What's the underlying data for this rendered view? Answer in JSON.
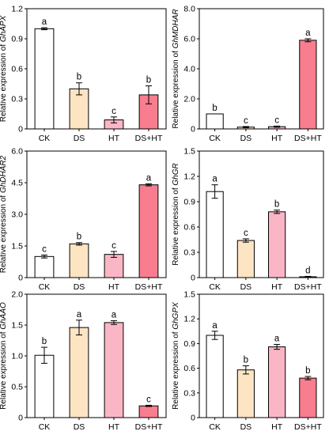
{
  "categories": [
    "CK",
    "DS",
    "HT",
    "DS+HT"
  ],
  "colors": {
    "CK": "#ffffff",
    "DS": "#fde4c2",
    "HT": "#fbb6c6",
    "DS+HT": "#f87d8f",
    "axis": "#000000"
  },
  "chart_data": [
    {
      "type": "bar",
      "ylabel_prefix": "Relative expression of ",
      "gene": "GhAPX",
      "categories": [
        "CK",
        "DS",
        "HT",
        "DS+HT"
      ],
      "values": [
        1.0,
        0.4,
        0.09,
        0.34
      ],
      "errors": [
        0.01,
        0.06,
        0.03,
        0.09
      ],
      "letters": [
        "a",
        "b",
        "c",
        "b"
      ],
      "ylim": [
        0,
        1.2
      ],
      "yticks": [
        "0",
        "0.3",
        "0.6",
        "0.9",
        "1.2"
      ]
    },
    {
      "type": "bar",
      "ylabel_prefix": "Relative expression of ",
      "gene": "GhMDHAR",
      "categories": [
        "CK",
        "DS",
        "HT",
        "DS+HT"
      ],
      "values": [
        1.0,
        0.12,
        0.15,
        5.9
      ],
      "errors": [
        0.0,
        0.04,
        0.04,
        0.1
      ],
      "letters": [
        "b",
        "c",
        "c",
        "a"
      ],
      "ylim": [
        0,
        8
      ],
      "yticks": [
        "0",
        "2.0",
        "4.0",
        "6.0",
        "8.0"
      ]
    },
    {
      "type": "bar",
      "ylabel_prefix": "Relative expression of ",
      "gene": "GhDHAR2",
      "categories": [
        "CK",
        "DS",
        "HT",
        "DS+HT"
      ],
      "values": [
        1.0,
        1.6,
        1.1,
        4.4
      ],
      "errors": [
        0.07,
        0.06,
        0.14,
        0.05
      ],
      "letters": [
        "c",
        "b",
        "c",
        "a"
      ],
      "ylim": [
        0,
        6
      ],
      "yticks": [
        "0",
        "1.5",
        "3.0",
        "4.5",
        "6.0"
      ]
    },
    {
      "type": "bar",
      "ylabel_prefix": "Relative expression of ",
      "gene": "GhGR",
      "categories": [
        "CK",
        "DS",
        "HT",
        "DS+HT"
      ],
      "values": [
        1.02,
        0.44,
        0.78,
        0.01
      ],
      "errors": [
        0.08,
        0.02,
        0.02,
        0.005
      ],
      "letters": [
        "a",
        "c",
        "b",
        "d"
      ],
      "ylim": [
        0,
        1.5
      ],
      "yticks": [
        "0",
        "0.3",
        "0.6",
        "0.9",
        "1.2",
        "1.5"
      ]
    },
    {
      "type": "bar",
      "ylabel_prefix": "Relative expression of ",
      "gene": "GhAAO",
      "categories": [
        "CK",
        "DS",
        "HT",
        "DS+HT"
      ],
      "values": [
        1.01,
        1.46,
        1.54,
        0.19
      ],
      "errors": [
        0.13,
        0.12,
        0.03,
        0.01
      ],
      "letters": [
        "b",
        "a",
        "a",
        "c"
      ],
      "ylim": [
        0,
        2
      ],
      "yticks": [
        "0",
        "0.5",
        "1.0",
        "1.5",
        "2.0"
      ]
    },
    {
      "type": "bar",
      "ylabel_prefix": "Relative expression of ",
      "gene": "GhGPX",
      "categories": [
        "CK",
        "DS",
        "HT",
        "DS+HT"
      ],
      "values": [
        1.0,
        0.58,
        0.86,
        0.48
      ],
      "errors": [
        0.05,
        0.05,
        0.03,
        0.02
      ],
      "letters": [
        "a",
        "b",
        "a",
        "b"
      ],
      "ylim": [
        0,
        1.5
      ],
      "yticks": [
        "0",
        "0.3",
        "0.6",
        "0.9",
        "1.2",
        "1.5"
      ]
    }
  ]
}
